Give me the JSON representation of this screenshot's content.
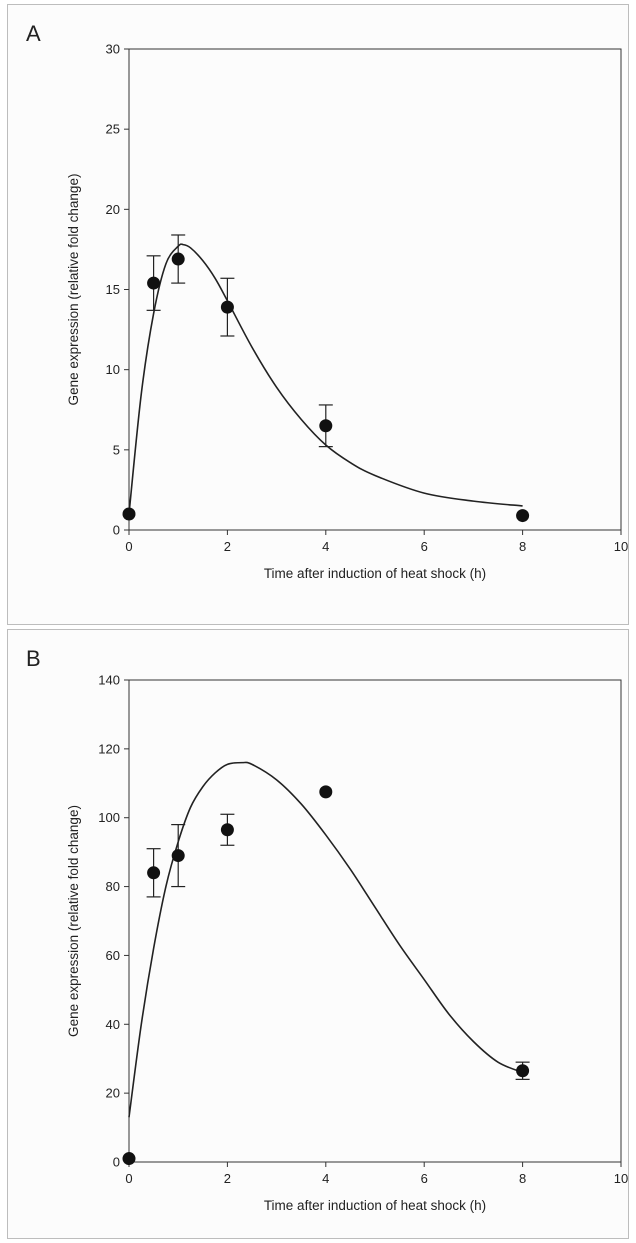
{
  "chart_data": [
    {
      "panel_label": "A",
      "type": "scatter",
      "xlabel": "Time after induction of heat shock (h)",
      "ylabel": "Gene expression (relative fold change)",
      "xlim": [
        0,
        10
      ],
      "ylim": [
        0,
        30
      ],
      "xticks": [
        0,
        2,
        4,
        6,
        8,
        10
      ],
      "yticks": [
        0,
        5,
        10,
        15,
        20,
        25,
        30
      ],
      "grid": false,
      "series": [
        {
          "points": [
            {
              "x": 0,
              "y": 1.0,
              "err": 0
            },
            {
              "x": 0.5,
              "y": 15.4,
              "err": 1.7
            },
            {
              "x": 1,
              "y": 16.9,
              "err": 1.5
            },
            {
              "x": 2,
              "y": 13.9,
              "err": 1.8
            },
            {
              "x": 4,
              "y": 6.5,
              "err": 1.3
            },
            {
              "x": 8,
              "y": 0.9,
              "err": 0
            }
          ]
        }
      ],
      "fit_curve": {
        "x": [
          0,
          0.25,
          0.5,
          0.75,
          1.0,
          1.1,
          1.25,
          1.5,
          1.75,
          2.0,
          2.5,
          3.0,
          3.5,
          4.0,
          4.5,
          5.0,
          6.0,
          7.0,
          8.0
        ],
        "y": [
          1.0,
          8.5,
          13.5,
          16.6,
          17.7,
          17.8,
          17.6,
          16.8,
          15.7,
          14.3,
          11.4,
          8.9,
          6.9,
          5.3,
          4.2,
          3.4,
          2.3,
          1.8,
          1.5
        ]
      }
    },
    {
      "panel_label": "B",
      "type": "scatter",
      "xlabel": "Time after induction of heat shock (h)",
      "ylabel": "Gene expression (relative fold change)",
      "xlim": [
        0,
        10
      ],
      "ylim": [
        0,
        140
      ],
      "xticks": [
        0,
        2,
        4,
        6,
        8,
        10
      ],
      "yticks": [
        0,
        20,
        40,
        60,
        80,
        100,
        120,
        140
      ],
      "grid": false,
      "series": [
        {
          "points": [
            {
              "x": 0,
              "y": 1.0,
              "err": 0
            },
            {
              "x": 0.5,
              "y": 84,
              "err": 7
            },
            {
              "x": 1,
              "y": 89,
              "err": 9
            },
            {
              "x": 2,
              "y": 96.5,
              "err": 4.5
            },
            {
              "x": 4,
              "y": 107.5,
              "err": 0
            },
            {
              "x": 8,
              "y": 26.5,
              "err": 2.5
            }
          ]
        }
      ],
      "fit_curve": {
        "x": [
          0,
          0.25,
          0.5,
          0.75,
          1.0,
          1.25,
          1.5,
          1.75,
          2.0,
          2.3,
          2.5,
          3.0,
          3.5,
          4.0,
          4.5,
          5.0,
          5.5,
          6.0,
          6.5,
          7.0,
          7.5,
          8.0
        ],
        "y": [
          13,
          40,
          62,
          80,
          93,
          103,
          109,
          113,
          115.5,
          116,
          115.5,
          111,
          104,
          95,
          85,
          74,
          63,
          53,
          43,
          35,
          29,
          26
        ]
      }
    }
  ]
}
